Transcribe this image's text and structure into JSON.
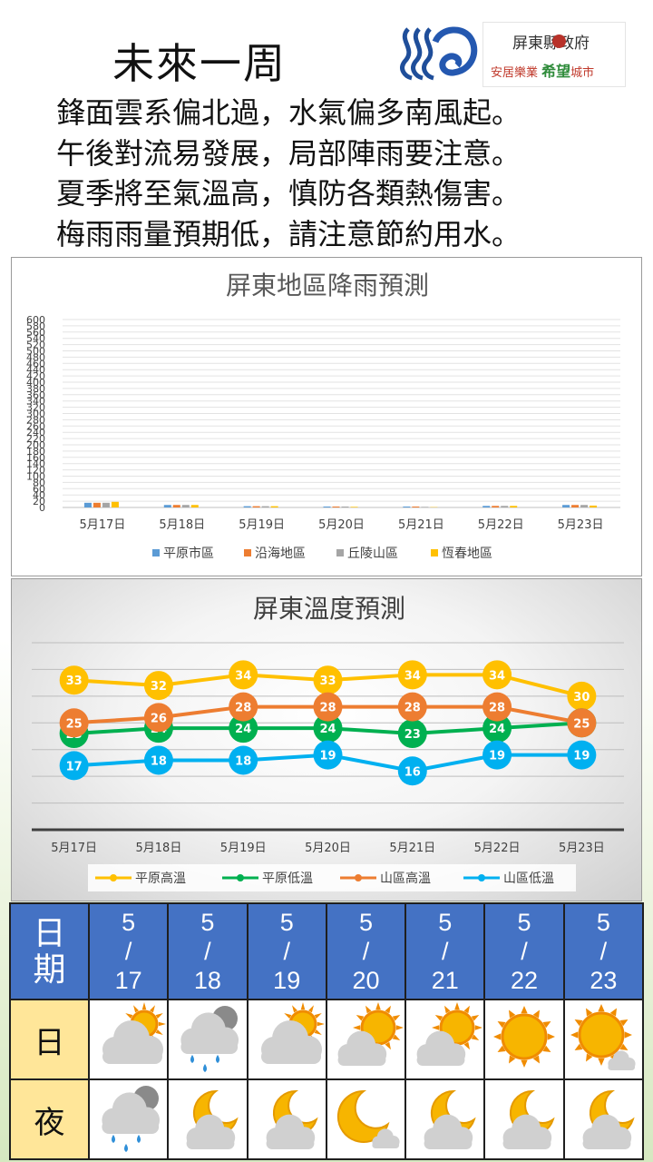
{
  "header": {
    "title": "未來一周",
    "gov_logo_line1": "屏東縣政府",
    "gov_logo_line2_a": "安居樂業",
    "gov_logo_line2_b": "希望",
    "gov_logo_line2_c": "城市"
  },
  "slogans": [
    "鋒面雲系偏北過，水氣偏多南風起。",
    "午後對流易發展，局部陣雨要注意。",
    "夏季將至氣溫高，慎防各類熱傷害。",
    "梅雨雨量預期低，請注意節約用水。"
  ],
  "chart_data": [
    {
      "type": "bar",
      "title": "屏東地區降雨預測",
      "categories": [
        "5月17日",
        "5月18日",
        "5月19日",
        "5月20日",
        "5月21日",
        "5月22日",
        "5月23日"
      ],
      "ylim": [
        0,
        600
      ],
      "yticks": [
        0,
        20,
        40,
        60,
        80,
        100,
        120,
        140,
        160,
        180,
        200,
        220,
        240,
        260,
        280,
        300,
        320,
        340,
        360,
        380,
        400,
        420,
        440,
        460,
        480,
        500,
        520,
        540,
        560,
        580,
        600
      ],
      "grid": true,
      "legend_position": "bottom",
      "series": [
        {
          "name": "平原市區",
          "color": "#5b9bd5",
          "values": [
            15,
            8,
            4,
            3,
            3,
            5,
            8
          ]
        },
        {
          "name": "沿海地區",
          "color": "#ed7d31",
          "values": [
            15,
            8,
            4,
            3,
            3,
            5,
            8
          ]
        },
        {
          "name": "丘陵山區",
          "color": "#a5a5a5",
          "values": [
            15,
            8,
            4,
            3,
            2,
            5,
            8
          ]
        },
        {
          "name": "恆春地區",
          "color": "#ffc000",
          "values": [
            18,
            8,
            4,
            2,
            1,
            5,
            6
          ]
        }
      ]
    },
    {
      "type": "line",
      "title": "屏東溫度預測",
      "categories": [
        "5月17日",
        "5月18日",
        "5月19日",
        "5月20日",
        "5月21日",
        "5月22日",
        "5月23日"
      ],
      "ylim": [
        5,
        40
      ],
      "grid": true,
      "legend_position": "bottom",
      "series": [
        {
          "name": "平原高溫",
          "color": "#ffc000",
          "values": [
            33,
            32,
            34,
            33,
            34,
            34,
            30
          ]
        },
        {
          "name": "平原低溫",
          "color": "#00b050",
          "values": [
            23,
            24,
            24,
            24,
            23,
            24,
            25
          ]
        },
        {
          "name": "山區高溫",
          "color": "#ed7d31",
          "values": [
            25,
            26,
            28,
            28,
            28,
            28,
            25
          ]
        },
        {
          "name": "山區低溫",
          "color": "#00b0f0",
          "values": [
            17,
            18,
            18,
            19,
            16,
            19,
            19
          ]
        }
      ]
    }
  ],
  "forecast_table": {
    "header_label": "日\n期",
    "day_label": "日",
    "night_label": "夜",
    "dates": [
      "5\n/\n17",
      "5\n/\n18",
      "5\n/\n19",
      "5\n/\n20",
      "5\n/\n21",
      "5\n/\n22",
      "5\n/\n23"
    ],
    "day_icons": [
      "partly-cloudy-sun-icon",
      "cloudy-rain-icon",
      "partly-cloudy-sun-icon",
      "sun-cloud-icon",
      "sun-cloud-icon",
      "sunny-icon",
      "sunny-small-cloud-icon"
    ],
    "night_icons": [
      "cloudy-rain-icon",
      "moon-cloud-icon",
      "moon-cloud-icon",
      "moon-small-cloud-icon",
      "moon-cloud-icon",
      "moon-cloud-icon",
      "moon-cloud-icon"
    ],
    "colors": {
      "header_bg": "#4472c4",
      "label_bg": "#ffe699"
    }
  }
}
